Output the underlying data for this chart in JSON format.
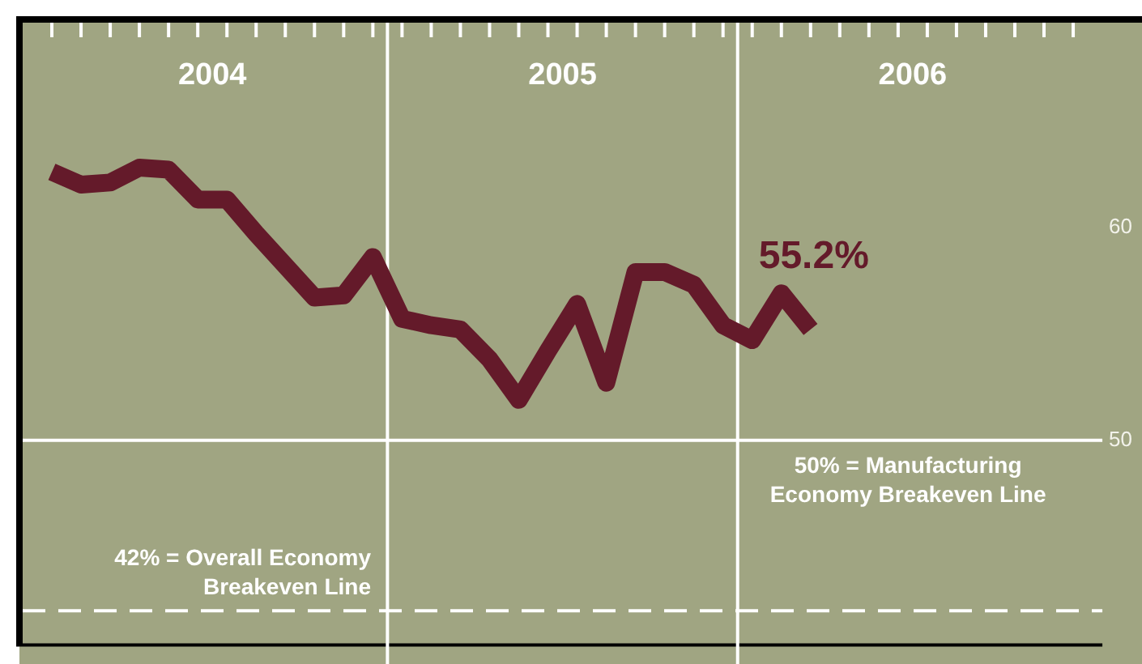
{
  "chart_data": {
    "type": "line",
    "x": [
      "2004-01",
      "2004-02",
      "2004-03",
      "2004-04",
      "2004-05",
      "2004-06",
      "2004-07",
      "2004-08",
      "2004-09",
      "2004-10",
      "2004-11",
      "2004-12",
      "2005-01",
      "2005-02",
      "2005-03",
      "2005-04",
      "2005-05",
      "2005-06",
      "2005-07",
      "2005-08",
      "2005-09",
      "2005-10",
      "2005-11",
      "2005-12",
      "2006-01",
      "2006-02",
      "2006-03"
    ],
    "series": [
      {
        "color": "#641a2a",
        "values": [
          62.6,
          62.0,
          62.1,
          62.8,
          62.7,
          61.3,
          61.3,
          59.7,
          58.2,
          56.7,
          56.8,
          58.6,
          55.7,
          55.4,
          55.2,
          53.8,
          51.9,
          54.2,
          56.4,
          52.7,
          57.9,
          57.9,
          57.3,
          55.4,
          54.7,
          56.9,
          55.2
        ],
        "value_labels": [
          null,
          null,
          null,
          null,
          null,
          null,
          null,
          null,
          null,
          null,
          null,
          null,
          null,
          null,
          null,
          null,
          null,
          null,
          null,
          null,
          null,
          null,
          null,
          null,
          null,
          null,
          "55.2%"
        ]
      }
    ],
    "xlim": [
      "2003-12",
      "2007-01"
    ],
    "xticks": [
      {
        "value": "2004-01",
        "label": null
      },
      {
        "value": "2004-02",
        "label": null
      },
      {
        "value": "2004-03",
        "label": null
      },
      {
        "value": "2004-04",
        "label": null
      },
      {
        "value": "2004-05",
        "label": null
      },
      {
        "value": "2004-06",
        "label": null
      },
      {
        "value": "2004-07",
        "label": null
      },
      {
        "value": "2004-08",
        "label": null
      },
      {
        "value": "2004-09",
        "label": null
      },
      {
        "value": "2004-10",
        "label": null
      },
      {
        "value": "2004-11",
        "label": null
      },
      {
        "value": "2004-12",
        "label": null
      },
      {
        "value": "2005-01",
        "label": null
      },
      {
        "value": "2005-02",
        "label": null
      },
      {
        "value": "2005-03",
        "label": null
      },
      {
        "value": "2005-04",
        "label": null
      },
      {
        "value": "2005-05",
        "label": null
      },
      {
        "value": "2005-06",
        "label": null
      },
      {
        "value": "2005-07",
        "label": null
      },
      {
        "value": "2005-08",
        "label": null
      },
      {
        "value": "2005-09",
        "label": null
      },
      {
        "value": "2005-10",
        "label": null
      },
      {
        "value": "2005-11",
        "label": null
      },
      {
        "value": "2005-12",
        "label": null
      },
      {
        "value": "2006-01",
        "label": null
      },
      {
        "value": "2006-02",
        "label": null
      },
      {
        "value": "2006-03",
        "label": null
      },
      {
        "value": "2006-04",
        "label": null
      },
      {
        "value": "2006-05",
        "label": null
      },
      {
        "value": "2006-06",
        "label": null
      },
      {
        "value": "2006-07",
        "label": null
      },
      {
        "value": "2006-08",
        "label": null
      },
      {
        "value": "2006-09",
        "label": null
      },
      {
        "value": "2006-10",
        "label": null
      },
      {
        "value": "2006-11",
        "label": null
      },
      {
        "value": "2006-12",
        "label": null
      },
      {
        "value": "2004-06-16",
        "label": "2004"
      },
      {
        "value": "2005-06-16",
        "label": "2005"
      },
      {
        "value": "2006-06-16",
        "label": "2006"
      }
    ],
    "ylim": [
      40.4,
      69.6
    ],
    "yticks": [
      50,
      60
    ],
    "ref_lines": [
      {
        "axis": "y",
        "value": 50,
        "label": "50% = Manufacturing Economy Breakeven Line",
        "color": "#ffffff",
        "line_style": "solid"
      },
      {
        "axis": "y",
        "value": 42,
        "label": "42% = Overall Economy Breakeven Line",
        "color": "#ffffff",
        "line_style": "dashed"
      },
      {
        "axis": "x",
        "value": "2004-12-16",
        "color": "#ffffff",
        "line_style": "solid"
      },
      {
        "axis": "x",
        "value": "2005-12-16",
        "color": "#ffffff",
        "line_style": "solid"
      }
    ],
    "grid": false,
    "legend": false,
    "marker": "none",
    "line_style": "solid"
  }
}
